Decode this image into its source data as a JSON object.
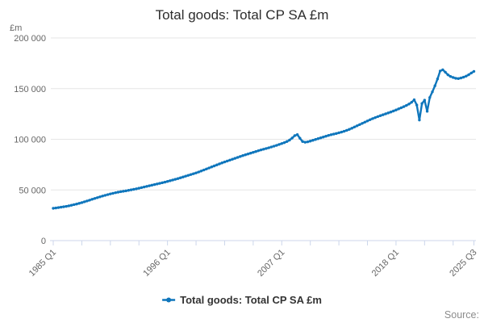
{
  "chart_data": {
    "type": "line",
    "title": "Total goods: Total CP SA £m",
    "unit_label": "£m",
    "xlabel": "",
    "ylabel": "£m",
    "ylim": [
      0,
      200000
    ],
    "y_ticks": [
      0,
      50000,
      100000,
      150000,
      200000
    ],
    "y_tick_labels": [
      "0",
      "50 000",
      "100 000",
      "150 000",
      "200 000"
    ],
    "grid": "horizontal",
    "x_axis_labeled_ticks": [
      {
        "index": 0,
        "label": "1985 Q1"
      },
      {
        "index": 44,
        "label": "1996 Q1"
      },
      {
        "index": 88,
        "label": "2007 Q1"
      },
      {
        "index": 132,
        "label": "2018 Q1"
      },
      {
        "index": 162,
        "label": "2025 Q3"
      }
    ],
    "minor_tick_every_quarters": 11,
    "legend": {
      "position": "bottom",
      "label": "Total goods: Total CP SA £m"
    },
    "categories": [
      "1985 Q1",
      "1985 Q2",
      "1985 Q3",
      "1985 Q4",
      "1986 Q1",
      "1986 Q2",
      "1986 Q3",
      "1986 Q4",
      "1987 Q1",
      "1987 Q2",
      "1987 Q3",
      "1987 Q4",
      "1988 Q1",
      "1988 Q2",
      "1988 Q3",
      "1988 Q4",
      "1989 Q1",
      "1989 Q2",
      "1989 Q3",
      "1989 Q4",
      "1990 Q1",
      "1990 Q2",
      "1990 Q3",
      "1990 Q4",
      "1991 Q1",
      "1991 Q2",
      "1991 Q3",
      "1991 Q4",
      "1992 Q1",
      "1992 Q2",
      "1992 Q3",
      "1992 Q4",
      "1993 Q1",
      "1993 Q2",
      "1993 Q3",
      "1993 Q4",
      "1994 Q1",
      "1994 Q2",
      "1994 Q3",
      "1994 Q4",
      "1995 Q1",
      "1995 Q2",
      "1995 Q3",
      "1995 Q4",
      "1996 Q1",
      "1996 Q2",
      "1996 Q3",
      "1996 Q4",
      "1997 Q1",
      "1997 Q2",
      "1997 Q3",
      "1997 Q4",
      "1998 Q1",
      "1998 Q2",
      "1998 Q3",
      "1998 Q4",
      "1999 Q1",
      "1999 Q2",
      "1999 Q3",
      "1999 Q4",
      "2000 Q1",
      "2000 Q2",
      "2000 Q3",
      "2000 Q4",
      "2001 Q1",
      "2001 Q2",
      "2001 Q3",
      "2001 Q4",
      "2002 Q1",
      "2002 Q2",
      "2002 Q3",
      "2002 Q4",
      "2003 Q1",
      "2003 Q2",
      "2003 Q3",
      "2003 Q4",
      "2004 Q1",
      "2004 Q2",
      "2004 Q3",
      "2004 Q4",
      "2005 Q1",
      "2005 Q2",
      "2005 Q3",
      "2005 Q4",
      "2006 Q1",
      "2006 Q2",
      "2006 Q3",
      "2006 Q4",
      "2007 Q1",
      "2007 Q2",
      "2007 Q3",
      "2007 Q4",
      "2008 Q1",
      "2008 Q2",
      "2008 Q3",
      "2008 Q4",
      "2009 Q1",
      "2009 Q2",
      "2009 Q3",
      "2009 Q4",
      "2010 Q1",
      "2010 Q2",
      "2010 Q3",
      "2010 Q4",
      "2011 Q1",
      "2011 Q2",
      "2011 Q3",
      "2011 Q4",
      "2012 Q1",
      "2012 Q2",
      "2012 Q3",
      "2012 Q4",
      "2013 Q1",
      "2013 Q2",
      "2013 Q3",
      "2013 Q4",
      "2014 Q1",
      "2014 Q2",
      "2014 Q3",
      "2014 Q4",
      "2015 Q1",
      "2015 Q2",
      "2015 Q3",
      "2015 Q4",
      "2016 Q1",
      "2016 Q2",
      "2016 Q3",
      "2016 Q4",
      "2017 Q1",
      "2017 Q2",
      "2017 Q3",
      "2017 Q4",
      "2018 Q1",
      "2018 Q2",
      "2018 Q3",
      "2018 Q4",
      "2019 Q1",
      "2019 Q2",
      "2019 Q3",
      "2019 Q4",
      "2020 Q1",
      "2020 Q2",
      "2020 Q3",
      "2020 Q4",
      "2021 Q1",
      "2021 Q2",
      "2021 Q3",
      "2021 Q4",
      "2022 Q1",
      "2022 Q2",
      "2022 Q3",
      "2022 Q4",
      "2023 Q1",
      "2023 Q2",
      "2023 Q3",
      "2023 Q4",
      "2024 Q1",
      "2024 Q2",
      "2024 Q3",
      "2024 Q4",
      "2025 Q1",
      "2025 Q2",
      "2025 Q3"
    ],
    "values": [
      31900,
      32200,
      32600,
      33000,
      33400,
      33800,
      34300,
      34900,
      35500,
      36100,
      36800,
      37500,
      38300,
      39100,
      39900,
      40800,
      41600,
      42400,
      43200,
      44000,
      44700,
      45400,
      46100,
      46700,
      47300,
      47800,
      48300,
      48700,
      49100,
      49600,
      50100,
      50600,
      51100,
      51700,
      52300,
      52900,
      53500,
      54100,
      54700,
      55300,
      55900,
      56500,
      57100,
      57700,
      58400,
      59100,
      59800,
      60500,
      61200,
      62000,
      62800,
      63600,
      64400,
      65200,
      66000,
      66800,
      67700,
      68700,
      69700,
      70700,
      71700,
      72700,
      73700,
      74700,
      75700,
      76700,
      77600,
      78500,
      79400,
      80300,
      81200,
      82100,
      83000,
      83900,
      84700,
      85500,
      86300,
      87100,
      87900,
      88700,
      89500,
      90200,
      90900,
      91600,
      92400,
      93200,
      94000,
      94900,
      95800,
      96700,
      97800,
      99200,
      101200,
      103600,
      104600,
      101000,
      97800,
      97100,
      97500,
      98200,
      99000,
      99800,
      100600,
      101400,
      102200,
      103000,
      103800,
      104500,
      105100,
      105700,
      106400,
      107100,
      107900,
      108800,
      109800,
      110900,
      112100,
      113300,
      114500,
      115700,
      116900,
      118100,
      119300,
      120400,
      121400,
      122400,
      123300,
      124200,
      125100,
      126000,
      126900,
      127900,
      128900,
      130000,
      131100,
      132200,
      133400,
      134800,
      136500,
      139000,
      133800,
      119000,
      135300,
      138600,
      127600,
      141200,
      146800,
      152800,
      159600,
      167400,
      168600,
      166200,
      163600,
      162000,
      161000,
      160200,
      159900,
      160500,
      161300,
      162300,
      163700,
      165400,
      167000
    ]
  },
  "footer": {
    "source_label": "Source:"
  },
  "colors": {
    "series": "#0f76bc",
    "grid": "#e6e6e6",
    "axis": "#ccd6eb",
    "tick_label": "#666666",
    "title": "#2d2d2d",
    "legend_text": "#333333",
    "source_text": "#8c8c8c",
    "background": "#ffffff"
  }
}
